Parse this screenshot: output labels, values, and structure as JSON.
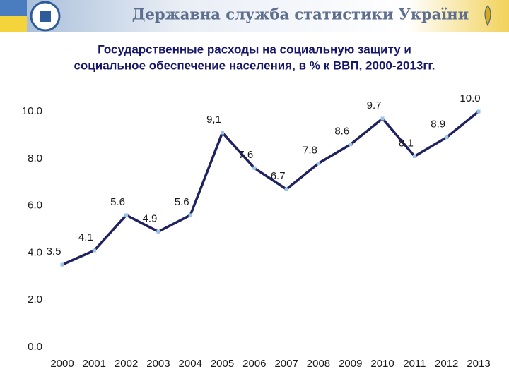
{
  "header": {
    "title": "Державна служба статистики України"
  },
  "chart_data": {
    "type": "line",
    "title": [
      "Государственные расходы на социальную защиту и",
      "социальное обеспечение населения, в % к ВВП, 2000-2013гг."
    ],
    "categories": [
      "2000",
      "2001",
      "2002",
      "2003",
      "2004",
      "2005",
      "2006",
      "2007",
      "2008",
      "2009",
      "2010",
      "2011",
      "2012",
      "2013"
    ],
    "series": [
      {
        "color": "#1f2160",
        "values": [
          3.5,
          4.1,
          5.6,
          4.9,
          5.6,
          9.1,
          7.6,
          6.7,
          7.8,
          8.6,
          9.7,
          8.1,
          8.9,
          10.0
        ],
        "value_labels": [
          "3.5",
          "4.1",
          "5.6",
          "4.9",
          "5.6",
          "9,1",
          "7.6",
          "6.7",
          "7.8",
          "8.6",
          "9.7",
          "8.1",
          "8.9",
          "10.0"
        ]
      }
    ],
    "ylim": [
      0,
      10
    ],
    "yticks": [
      {
        "value": 0,
        "label": "0.0"
      },
      {
        "value": 2,
        "label": "2.0"
      },
      {
        "value": 4,
        "label": "4.0"
      },
      {
        "value": 6,
        "label": "6.0"
      },
      {
        "value": 8,
        "label": "8.0"
      },
      {
        "value": 10,
        "label": "10.0"
      }
    ],
    "grid": false
  }
}
